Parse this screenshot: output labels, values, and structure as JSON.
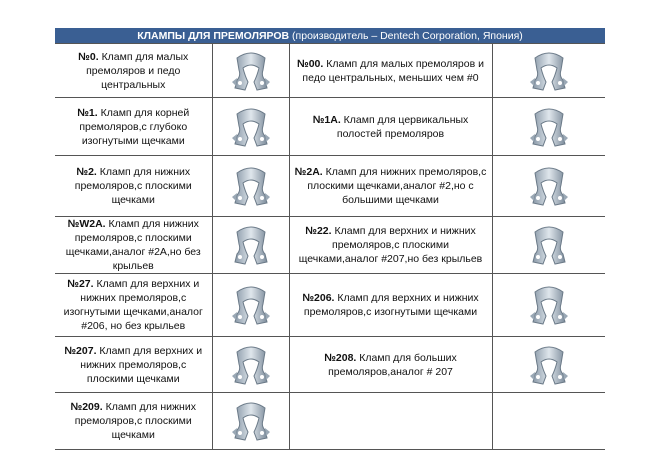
{
  "header": {
    "title": "КЛАМПЫ ДЛЯ ПРЕМОЛЯРОВ",
    "subtitle": "(производитель – Dentech Corporation, Япония)",
    "color": "#3a5f93"
  },
  "rows": [
    [
      {
        "code": "№0.",
        "text": "Кламп для малых премоляров и педо центральных"
      },
      {
        "code": "№00.",
        "text": "Кламп для малых премоляров и педо центральных, меньших чем #0"
      }
    ],
    [
      {
        "code": "№1.",
        "text": "Кламп для корней премоляров,с глубоко изогнутыми щечками"
      },
      {
        "code": "№1А.",
        "text": "Кламп для цервикальных полостей премоляров"
      }
    ],
    [
      {
        "code": "№2.",
        "text": "Кламп для нижних премоляров,с плоскими щечками"
      },
      {
        "code": "№2А.",
        "text": "Кламп для нижних премоляров,с плоскими щечками,аналог #2,но с большими щечками"
      }
    ],
    [
      {
        "code": "№W2A.",
        "text": "Кламп для нижних премоляров,с плоскими щечками,аналог #2А,но без крыльев"
      },
      {
        "code": "№22.",
        "text": "Кламп для верхних и нижних премоляров,с плоскими щечками,аналог #207,но без крыльев"
      }
    ],
    [
      {
        "code": "№27.",
        "text": "Кламп для верхних и нижних премоляров,с изогнутыми щечками,аналог #206, но без крыльев"
      },
      {
        "code": "№206.",
        "text": "Кламп для верхних и нижних премоляров,с изогнутыми щечками"
      }
    ],
    [
      {
        "code": "№207.",
        "text": "Кламп для верхних и нижних премоляров,с плоскими щечками"
      },
      {
        "code": "№208.",
        "text": "Кламп для больших премоляров,аналог # 207"
      }
    ],
    [
      {
        "code": "№209.",
        "text": "Кламп для нижних премоляров,с плоскими щечками"
      },
      null
    ]
  ]
}
